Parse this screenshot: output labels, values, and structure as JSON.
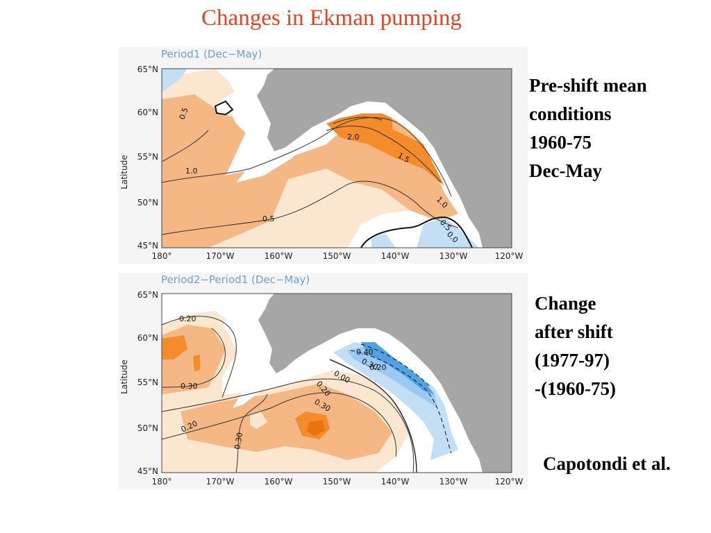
{
  "slide": {
    "title": "Changes in Ekman pumping",
    "credit": "Capotondi et al."
  },
  "colors": {
    "title": "#e8411e",
    "land": "#a6a6a6",
    "positive_light": "#fbe6d0",
    "positive_mid": "#f5b885",
    "positive_strong": "#f48c2b",
    "positive_max": "#ec7410",
    "negative_light": "#c3dff5",
    "negative_mid": "#9bc9f0",
    "negative_strong": "#4fa2e6"
  },
  "maps": [
    {
      "panel_title": "Period1  (Dec−May)",
      "ylabel": "Latitude",
      "lat_ticks": [
        "65°N",
        "60°N",
        "55°N",
        "50°N",
        "45°N"
      ],
      "lon_ticks": [
        "180°",
        "170°W",
        "160°W",
        "150°W",
        "140°W",
        "130°W",
        "120°W"
      ],
      "contour_labels": [
        "0.5",
        "1.0",
        "2.0",
        "1.5",
        "1.0",
        "0.5",
        "0.0",
        "0.5"
      ],
      "description_labels": [
        "Pre-shift mean",
        "conditions",
        "1960-75",
        "Dec-May"
      ]
    },
    {
      "panel_title": "Period2−Period1  (Dec−May)",
      "ylabel": "Latitude",
      "lat_ticks": [
        "65°N",
        "60°N",
        "55°N",
        "50°N",
        "45°N"
      ],
      "lon_ticks": [
        "180°",
        "170°W",
        "160°W",
        "150°W",
        "140°W",
        "130°W",
        "120°W"
      ],
      "contour_labels": [
        "0.20",
        "0.30",
        "0.20",
        "0.40",
        "0.30",
        "0.20",
        "0.00",
        "0.20",
        "0.30",
        "0.30"
      ],
      "description_labels": [
        "Change",
        "after shift",
        "(1977-97)",
        "-(1960-75)"
      ]
    }
  ]
}
